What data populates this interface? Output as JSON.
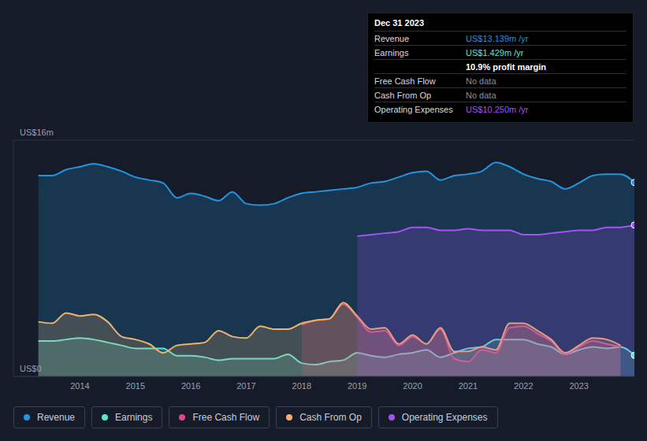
{
  "chart_data": {
    "type": "area",
    "x": [
      2013.25,
      2013.5,
      2013.75,
      2014,
      2014.25,
      2014.5,
      2014.75,
      2015,
      2015.25,
      2015.5,
      2015.75,
      2016,
      2016.25,
      2016.5,
      2016.75,
      2017,
      2017.25,
      2017.5,
      2017.75,
      2018,
      2018.25,
      2018.5,
      2018.75,
      2019,
      2019.25,
      2019.5,
      2019.75,
      2020,
      2020.25,
      2020.5,
      2020.75,
      2021,
      2021.25,
      2021.5,
      2021.75,
      2022,
      2022.25,
      2022.5,
      2022.75,
      2023,
      2023.25,
      2023.5,
      2023.75,
      2024
    ],
    "xlim": [
      2012.8,
      2024
    ],
    "xticks": [
      2014,
      2015,
      2016,
      2017,
      2018,
      2019,
      2020,
      2021,
      2022,
      2023
    ],
    "ylim": [
      0,
      16
    ],
    "yticks": [
      {
        "value": 0,
        "label": "US$0"
      },
      {
        "value": 16,
        "label": "US$16m"
      }
    ],
    "grid": true,
    "series": [
      {
        "name": "Revenue",
        "color": "#2394df",
        "values": [
          13.6,
          13.6,
          14.0,
          14.2,
          14.4,
          14.2,
          13.9,
          13.5,
          13.3,
          13.1,
          12.1,
          12.4,
          12.2,
          11.9,
          12.5,
          11.7,
          11.6,
          11.7,
          12.1,
          12.4,
          12.5,
          12.6,
          12.7,
          12.8,
          13.1,
          13.2,
          13.5,
          13.8,
          13.9,
          13.3,
          13.6,
          13.7,
          13.9,
          14.5,
          14.2,
          13.7,
          13.4,
          13.2,
          12.7,
          13.1,
          13.6,
          13.7,
          13.7,
          13.139
        ]
      },
      {
        "name": "Earnings",
        "color": "#5fe4d0",
        "values": [
          2.4,
          2.4,
          2.5,
          2.6,
          2.5,
          2.3,
          2.1,
          1.9,
          1.9,
          1.9,
          1.4,
          1.4,
          1.3,
          1.1,
          1.2,
          1.2,
          1.2,
          1.2,
          1.5,
          0.9,
          0.8,
          1.0,
          1.1,
          1.6,
          1.4,
          1.3,
          1.5,
          1.6,
          1.8,
          1.3,
          1.6,
          1.9,
          2.0,
          2.5,
          2.5,
          2.5,
          2.2,
          2.0,
          1.5,
          1.8,
          2.0,
          1.9,
          2.0,
          1.429
        ]
      },
      {
        "name": "Free Cash Flow",
        "color": "#d94a87",
        "values": [
          null,
          null,
          null,
          null,
          null,
          null,
          null,
          null,
          null,
          null,
          null,
          null,
          null,
          null,
          null,
          null,
          null,
          null,
          null,
          3.5,
          3.8,
          3.9,
          4.9,
          4.0,
          3.0,
          3.1,
          2.1,
          2.7,
          2.2,
          3.2,
          1.2,
          1.0,
          1.8,
          1.6,
          3.3,
          3.4,
          2.9,
          2.4,
          1.5,
          2.0,
          2.4,
          2.2,
          2.0,
          null
        ]
      },
      {
        "name": "Cash From Op",
        "color": "#f0b26a",
        "values": [
          3.7,
          3.6,
          4.3,
          4.1,
          4.2,
          3.7,
          2.7,
          2.5,
          2.2,
          1.6,
          2.1,
          2.2,
          2.3,
          3.1,
          2.7,
          2.6,
          3.4,
          3.2,
          3.2,
          3.6,
          3.8,
          3.9,
          5.0,
          4.1,
          3.2,
          3.3,
          2.2,
          2.8,
          2.2,
          3.3,
          1.7,
          1.7,
          2.0,
          1.8,
          3.6,
          3.6,
          3.1,
          2.5,
          1.6,
          2.1,
          2.6,
          2.5,
          2.1,
          null
        ]
      },
      {
        "name": "Operating Expenses",
        "color": "#a651f5",
        "values": [
          null,
          null,
          null,
          null,
          null,
          null,
          null,
          null,
          null,
          null,
          null,
          null,
          null,
          null,
          null,
          null,
          null,
          null,
          null,
          null,
          null,
          null,
          null,
          9.5,
          9.6,
          9.7,
          9.8,
          10.1,
          10.1,
          9.9,
          9.9,
          10.0,
          9.9,
          9.9,
          9.9,
          9.6,
          9.6,
          9.7,
          9.8,
          9.9,
          9.9,
          10.1,
          10.1,
          10.25
        ]
      }
    ],
    "info_box": {
      "title": "Dec 31 2023",
      "rows": [
        {
          "label": "Revenue",
          "value": "US$13.139m /yr",
          "color": "#2394df"
        },
        {
          "label": "Earnings",
          "value": "US$1.429m /yr",
          "color": "#5fe4d0"
        },
        {
          "value": "10.9% profit margin",
          "color": "#ffffff"
        },
        {
          "label": "Free Cash Flow",
          "value": "No data",
          "color": "#8a8f99"
        },
        {
          "label": "Cash From Op",
          "value": "No data",
          "color": "#8a8f99"
        },
        {
          "label": "Operating Expenses",
          "value": "US$10.250m /yr",
          "color": "#a651f5"
        }
      ]
    }
  }
}
